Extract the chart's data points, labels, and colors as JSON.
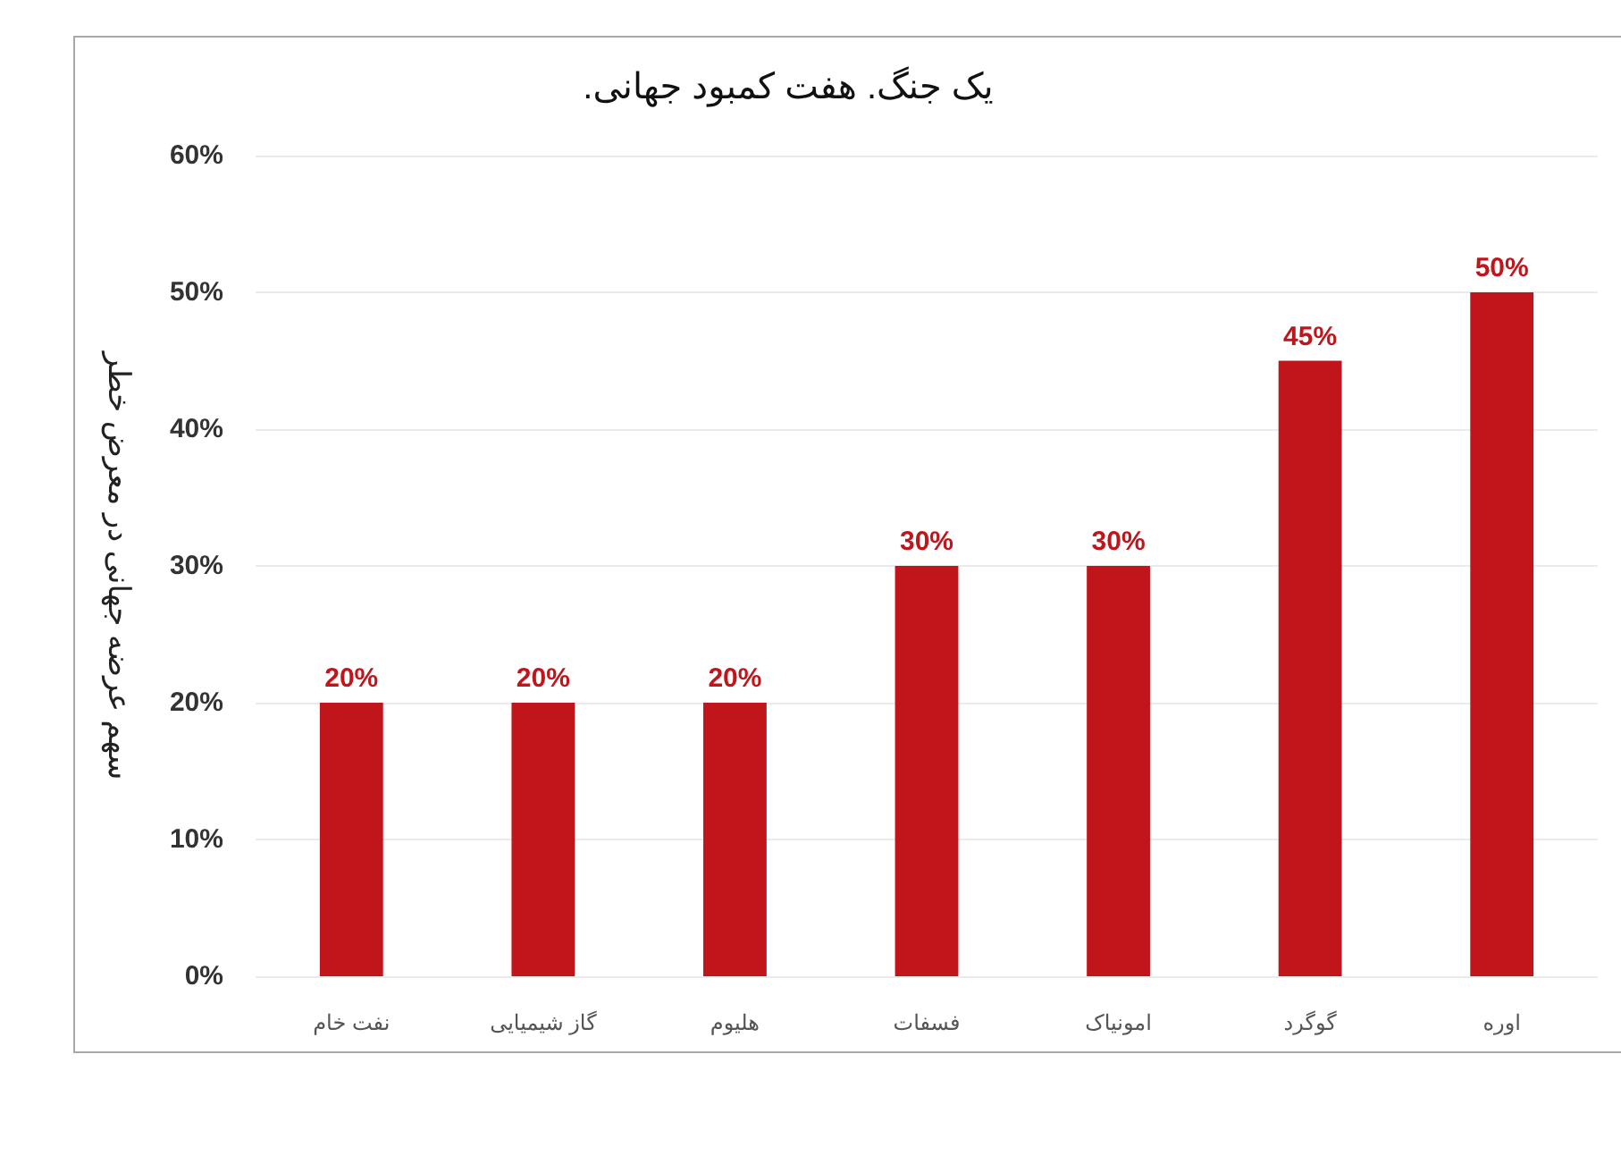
{
  "chart_data": {
    "type": "bar",
    "title": "یک جنگ. هفت کمبود جهانی.",
    "ylabel": "سهم عرضه جهانی در معرض خطر",
    "categories": [
      "نفت خام",
      "گاز شیمیایی",
      "هلیوم",
      "فسفات",
      "امونیاک",
      "گوگرد",
      "اوره"
    ],
    "values": [
      20,
      20,
      20,
      30,
      30,
      45,
      50
    ],
    "value_labels": [
      "20%",
      "20%",
      "20%",
      "30%",
      "30%",
      "45%",
      "50%"
    ],
    "color": "#c0161b",
    "ylim": [
      0,
      60
    ],
    "yticks": [
      {
        "value": 0,
        "label": "0%"
      },
      {
        "value": 10,
        "label": "10%"
      },
      {
        "value": 20,
        "label": "20%"
      },
      {
        "value": 30,
        "label": "30%"
      },
      {
        "value": 40,
        "label": "40%"
      },
      {
        "value": 50,
        "label": "50%"
      },
      {
        "value": 60,
        "label": "60%"
      }
    ],
    "grid": "y"
  }
}
